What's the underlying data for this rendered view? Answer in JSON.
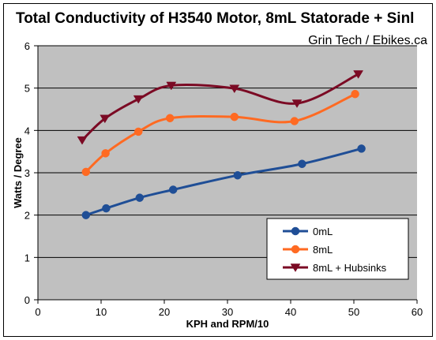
{
  "chart_data": {
    "type": "line",
    "title": "Total Conductivity of H3540 Motor, 8mL Statorade + Sinl",
    "subtitle": "Grin Tech / Ebikes.ca",
    "xlabel": "KPH and RPM/10",
    "ylabel": "Watts / Degree",
    "xlim": [
      0,
      60
    ],
    "ylim": [
      0,
      6
    ],
    "xticks": [
      "0",
      "10",
      "20",
      "30",
      "40",
      "50",
      "60"
    ],
    "yticks": [
      "0",
      "1",
      "2",
      "3",
      "4",
      "5",
      "6"
    ],
    "grid": "horizontal",
    "legend_position": "bottom-right",
    "series": [
      {
        "name": "0mL",
        "color": "#1f4e96",
        "marker": "circle",
        "x": [
          7.6,
          10.8,
          16.1,
          21.4,
          31.6,
          41.8,
          51.2
        ],
        "y": [
          2.0,
          2.16,
          2.41,
          2.6,
          2.94,
          3.21,
          3.57
        ]
      },
      {
        "name": "8mL",
        "color": "#ff6a22",
        "marker": "circle",
        "x": [
          7.6,
          10.7,
          15.9,
          20.9,
          31.1,
          40.6,
          50.2
        ],
        "y": [
          3.02,
          3.46,
          3.97,
          4.29,
          4.32,
          4.22,
          4.86
        ]
      },
      {
        "name": "8mL + Hubsinks",
        "color": "#7b0a24",
        "marker": "triangle-down",
        "x": [
          7.0,
          10.6,
          15.9,
          21.1,
          31.1,
          41.0,
          50.7
        ],
        "y": [
          3.77,
          4.28,
          4.74,
          5.06,
          4.99,
          4.64,
          5.33
        ]
      }
    ]
  }
}
